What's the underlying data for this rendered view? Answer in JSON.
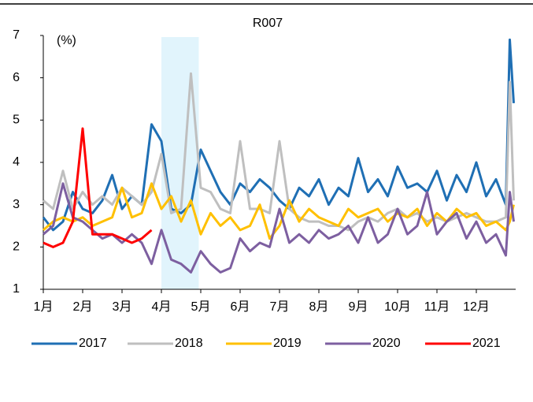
{
  "chart_data": {
    "type": "line",
    "title": "R007",
    "y_label": "(%)",
    "x": [
      1.0,
      1.25,
      1.5,
      1.75,
      2.0,
      2.25,
      2.5,
      2.75,
      3.0,
      3.25,
      3.5,
      3.75,
      4.0,
      4.25,
      4.5,
      4.75,
      5.0,
      5.25,
      5.5,
      5.75,
      6.0,
      6.25,
      6.5,
      6.75,
      7.0,
      7.25,
      7.5,
      7.75,
      8.0,
      8.25,
      8.5,
      8.75,
      9.0,
      9.25,
      9.5,
      9.75,
      10.0,
      10.25,
      10.5,
      10.75,
      11.0,
      11.25,
      11.5,
      11.75,
      12.0,
      12.25,
      12.5,
      12.75,
      12.85,
      12.95
    ],
    "xlim": [
      1,
      13
    ],
    "xticks": [
      {
        "value": 1,
        "label": "1月"
      },
      {
        "value": 2,
        "label": "2月"
      },
      {
        "value": 3,
        "label": "3月"
      },
      {
        "value": 4,
        "label": "4月"
      },
      {
        "value": 5,
        "label": "5月"
      },
      {
        "value": 6,
        "label": "6月"
      },
      {
        "value": 7,
        "label": "7月"
      },
      {
        "value": 8,
        "label": "8月"
      },
      {
        "value": 9,
        "label": "9月"
      },
      {
        "value": 10,
        "label": "10月"
      },
      {
        "value": 11,
        "label": "11月"
      },
      {
        "value": 12,
        "label": "12月"
      }
    ],
    "ylim": [
      1,
      7
    ],
    "yticks": [
      1,
      2,
      3,
      4,
      5,
      6,
      7
    ],
    "shaded_x": [
      4,
      4.95
    ],
    "shade_color": "#e1f4fc",
    "legend": "bottom",
    "series": [
      {
        "name": "2017",
        "color": "#1f6fb4",
        "values": [
          2.7,
          2.4,
          2.6,
          3.3,
          2.9,
          2.8,
          3.1,
          3.7,
          2.9,
          3.2,
          3.0,
          4.9,
          4.5,
          2.9,
          2.8,
          3.0,
          4.3,
          3.8,
          3.3,
          3.0,
          3.5,
          3.3,
          3.6,
          3.4,
          3.1,
          2.9,
          3.4,
          3.2,
          3.6,
          3.0,
          3.4,
          3.2,
          4.1,
          3.3,
          3.6,
          3.2,
          3.9,
          3.4,
          3.5,
          3.3,
          3.8,
          3.1,
          3.7,
          3.3,
          4.0,
          3.2,
          3.6,
          3.0,
          6.9,
          5.4
        ]
      },
      {
        "name": "2018",
        "color": "#bfbfbf",
        "values": [
          3.1,
          2.9,
          3.8,
          2.9,
          3.3,
          3.0,
          3.2,
          3.0,
          3.4,
          3.2,
          3.0,
          3.3,
          4.2,
          2.8,
          2.9,
          6.1,
          3.4,
          3.3,
          2.9,
          2.8,
          4.5,
          2.9,
          2.9,
          2.8,
          4.5,
          2.9,
          2.7,
          2.6,
          2.6,
          2.5,
          2.5,
          2.4,
          2.6,
          2.7,
          2.6,
          2.8,
          2.9,
          2.7,
          2.8,
          2.6,
          2.7,
          2.6,
          2.7,
          2.8,
          2.7,
          2.6,
          2.6,
          2.7,
          5.9,
          3.1
        ]
      },
      {
        "name": "2019",
        "color": "#ffc000",
        "values": [
          2.4,
          2.6,
          2.7,
          2.6,
          2.7,
          2.5,
          2.6,
          2.7,
          3.4,
          2.7,
          2.8,
          3.5,
          2.9,
          3.2,
          2.6,
          3.1,
          2.3,
          2.8,
          2.5,
          2.7,
          2.4,
          2.5,
          3.0,
          2.2,
          2.5,
          3.1,
          2.6,
          2.9,
          2.7,
          2.6,
          2.5,
          2.9,
          2.7,
          2.8,
          2.9,
          2.6,
          2.8,
          2.7,
          2.9,
          2.5,
          2.8,
          2.6,
          2.9,
          2.7,
          2.8,
          2.5,
          2.6,
          2.4,
          2.6,
          3.0
        ]
      },
      {
        "name": "2020",
        "color": "#7d5fa0",
        "values": [
          2.3,
          2.5,
          3.5,
          2.7,
          2.6,
          2.4,
          2.2,
          2.3,
          2.1,
          2.3,
          2.1,
          1.6,
          2.4,
          1.7,
          1.6,
          1.4,
          1.9,
          1.6,
          1.4,
          1.5,
          2.2,
          1.9,
          2.1,
          2.0,
          2.9,
          2.1,
          2.3,
          2.1,
          2.4,
          2.2,
          2.3,
          2.5,
          2.1,
          2.7,
          2.1,
          2.3,
          2.9,
          2.3,
          2.5,
          3.3,
          2.3,
          2.6,
          2.8,
          2.2,
          2.6,
          2.1,
          2.3,
          1.8,
          3.3,
          2.6
        ]
      },
      {
        "name": "2021",
        "color": "#ff0000",
        "values": [
          2.1,
          2.0,
          2.1,
          2.6,
          4.8,
          2.3,
          2.3,
          2.3,
          2.2,
          2.1,
          2.2,
          2.4,
          null,
          null,
          null,
          null,
          null,
          null,
          null,
          null,
          null,
          null,
          null,
          null,
          null,
          null,
          null,
          null,
          null,
          null,
          null,
          null,
          null,
          null,
          null,
          null,
          null,
          null,
          null,
          null,
          null,
          null,
          null,
          null,
          null,
          null,
          null,
          null,
          null,
          null
        ]
      }
    ]
  }
}
